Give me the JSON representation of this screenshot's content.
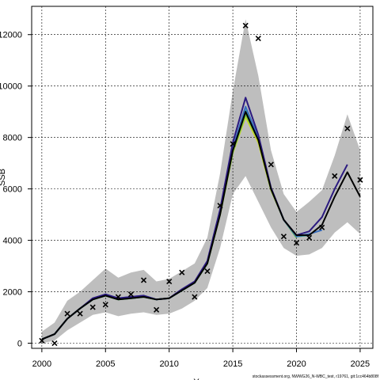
{
  "chart_data": {
    "type": "line",
    "title": "",
    "xlabel": "Year",
    "ylabel": "SSB",
    "xlim": [
      1999.2,
      2026.0
    ],
    "ylim": [
      -200,
      13100
    ],
    "x_ticks": [
      2000,
      2005,
      2010,
      2015,
      2020,
      2025
    ],
    "y_ticks": [
      0,
      2000,
      4000,
      6000,
      8000,
      10000,
      12000
    ],
    "y_tick_labels": [
      "0",
      "2000",
      "4000",
      "6000",
      "8000",
      "10000",
      "12000"
    ],
    "grid": true,
    "confidence_band": {
      "x": [
        2000,
        2001,
        2002,
        2003,
        2004,
        2005,
        2006,
        2007,
        2008,
        2009,
        2010,
        2011,
        2012,
        2013,
        2014,
        2015,
        2016,
        2017,
        2018,
        2019,
        2020,
        2021,
        2022,
        2023,
        2024,
        2025
      ],
      "lower": [
        0,
        100,
        500,
        800,
        1100,
        1200,
        1050,
        1150,
        1200,
        1100,
        1150,
        1350,
        1650,
        2150,
        3700,
        5800,
        6500,
        5500,
        4500,
        3700,
        3400,
        3450,
        3700,
        4300,
        4700,
        4250
      ],
      "upper": [
        450,
        800,
        1650,
        2000,
        2450,
        2900,
        2550,
        2750,
        2850,
        2400,
        2500,
        2800,
        3100,
        4100,
        6600,
        9800,
        12600,
        10400,
        7500,
        5800,
        5100,
        5500,
        5950,
        7300,
        8900,
        7500
      ],
      "color": "#bebebe"
    },
    "series": [
      {
        "color": "#000000",
        "style": "solid",
        "x": [
          2000,
          2001,
          2002,
          2003,
          2004,
          2005,
          2006,
          2007,
          2008,
          2009,
          2010,
          2011,
          2012,
          2013,
          2014,
          2015,
          2016,
          2017,
          2018,
          2019,
          2020,
          2021,
          2022,
          2023,
          2024,
          2025
        ],
        "values": [
          150,
          350,
          950,
          1350,
          1700,
          1850,
          1700,
          1750,
          1800,
          1700,
          1750,
          2050,
          2350,
          3100,
          5000,
          7500,
          9000,
          7900,
          6000,
          4800,
          4200,
          4200,
          4600,
          5700,
          6650,
          5700
        ]
      },
      {
        "color": "#2b1a80",
        "style": "solid",
        "x": [
          2000,
          2001,
          2002,
          2003,
          2004,
          2005,
          2006,
          2007,
          2008,
          2009,
          2010,
          2011,
          2012,
          2013,
          2014,
          2015,
          2016,
          2017,
          2018,
          2019,
          2020,
          2021,
          2022,
          2023,
          2024
        ],
        "values": [
          150,
          350,
          950,
          1350,
          1750,
          1900,
          1750,
          1800,
          1850,
          1700,
          1750,
          2100,
          2400,
          3200,
          5200,
          7800,
          9550,
          8100,
          6050,
          4800,
          4200,
          4350,
          4900,
          6000,
          6950
        ]
      },
      {
        "color": "#3a6fbf",
        "style": "solid",
        "x": [
          2000,
          2001,
          2002,
          2003,
          2004,
          2005,
          2006,
          2007,
          2008,
          2009,
          2010,
          2011,
          2012,
          2013,
          2014,
          2015,
          2016,
          2017,
          2018,
          2019,
          2020,
          2021,
          2022
        ],
        "values": [
          150,
          350,
          950,
          1350,
          1700,
          1900,
          1750,
          1800,
          1850,
          1700,
          1750,
          2050,
          2350,
          3150,
          5100,
          7600,
          9200,
          8000,
          6000,
          4800,
          4150,
          4250,
          4400
        ]
      },
      {
        "color": "#2ab0a0",
        "style": "solid",
        "x": [
          2000,
          2001,
          2002,
          2003,
          2004,
          2005,
          2006,
          2007,
          2008,
          2009,
          2010,
          2011,
          2012,
          2013,
          2014,
          2015,
          2016,
          2017,
          2018,
          2019,
          2020,
          2021
        ],
        "values": [
          150,
          350,
          950,
          1350,
          1700,
          1850,
          1700,
          1750,
          1800,
          1700,
          1750,
          2050,
          2350,
          3100,
          5050,
          7500,
          9050,
          7950,
          6000,
          4800,
          4150,
          4200
        ]
      },
      {
        "color": "#6cc24a",
        "style": "solid",
        "x": [
          2000,
          2001,
          2002,
          2003,
          2004,
          2005,
          2006,
          2007,
          2008,
          2009,
          2010,
          2011,
          2012,
          2013,
          2014,
          2015,
          2016,
          2017,
          2018,
          2019,
          2020
        ],
        "values": [
          150,
          350,
          950,
          1350,
          1700,
          1850,
          1700,
          1750,
          1800,
          1700,
          1750,
          2050,
          2350,
          3100,
          5000,
          7450,
          8900,
          7900,
          6000,
          4800,
          4100
        ]
      },
      {
        "color": "#c8d820",
        "style": "solid",
        "x": [
          2000,
          2001,
          2002,
          2003,
          2004,
          2005,
          2006,
          2007,
          2008,
          2009,
          2010,
          2011,
          2012,
          2013,
          2014,
          2015,
          2016,
          2017,
          2018,
          2019
        ],
        "values": [
          150,
          350,
          950,
          1350,
          1700,
          1850,
          1700,
          1750,
          1800,
          1700,
          1750,
          2050,
          2350,
          3100,
          5000,
          7400,
          8800,
          7800,
          5950,
          4800
        ]
      },
      {
        "color": "#000000",
        "style": "dashed",
        "x": [
          2020,
          2021,
          2022,
          2023,
          2024,
          2025
        ],
        "values": [
          4200,
          4200,
          4600,
          5700,
          6650,
          5700
        ]
      }
    ],
    "observations": {
      "marker": "x",
      "x": [
        2000,
        2001,
        2002,
        2003,
        2004,
        2005,
        2006,
        2007,
        2008,
        2009,
        2010,
        2011,
        2012,
        2013,
        2014,
        2015,
        2016,
        2017,
        2018,
        2019,
        2020,
        2021,
        2022,
        2023,
        2024,
        2025
      ],
      "values": [
        100,
        0,
        1150,
        1150,
        1400,
        1500,
        1800,
        1900,
        2450,
        1300,
        2400,
        2750,
        1800,
        2800,
        5350,
        7750,
        12350,
        11850,
        6950,
        4150,
        3900,
        4100,
        4500,
        6500,
        8350,
        6350
      ]
    }
  },
  "footer": "stockassessment.org, NWWG26_N-WBC_test, r19761, git:1cc464b808f"
}
